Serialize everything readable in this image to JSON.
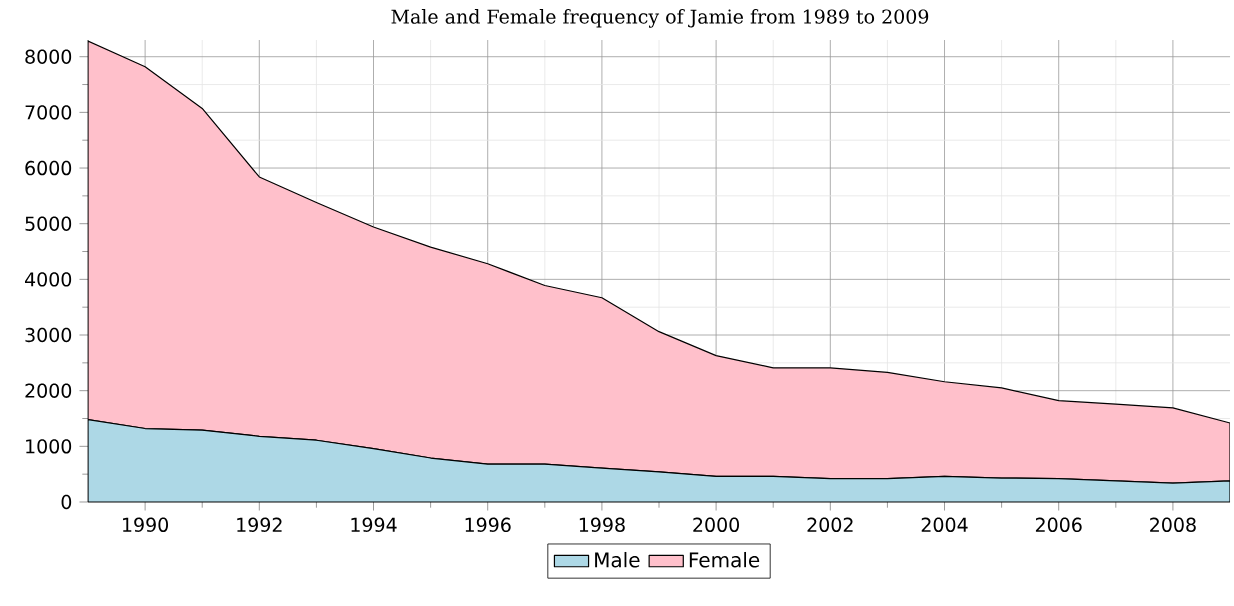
{
  "chart_data": {
    "type": "area",
    "title": "Male and Female frequency of Jamie from 1989 to 2009",
    "stacked": true,
    "x": [
      1989,
      1990,
      1991,
      1992,
      1993,
      1994,
      1995,
      1996,
      1997,
      1998,
      1999,
      2000,
      2001,
      2002,
      2003,
      2004,
      2005,
      2006,
      2007,
      2008,
      2009
    ],
    "series": [
      {
        "name": "Male",
        "color": "#add8e6",
        "values": [
          1480,
          1320,
          1290,
          1180,
          1110,
          960,
          790,
          680,
          680,
          610,
          540,
          460,
          460,
          420,
          420,
          460,
          430,
          420,
          380,
          340,
          380
        ]
      },
      {
        "name": "Female",
        "color": "#ffc0cb",
        "values": [
          6800,
          6500,
          5780,
          4660,
          4270,
          3980,
          3790,
          3600,
          3210,
          3060,
          2520,
          2170,
          1950,
          1990,
          1910,
          1700,
          1620,
          1400,
          1380,
          1350,
          1040
        ]
      }
    ],
    "xlim": [
      1989,
      2009
    ],
    "xticks": [
      1990,
      1992,
      1994,
      1996,
      1998,
      2000,
      2002,
      2004,
      2006,
      2008
    ],
    "ylim": [
      0,
      8300
    ],
    "yticks": [
      0,
      1000,
      2000,
      3000,
      4000,
      5000,
      6000,
      7000,
      8000
    ],
    "grid": true,
    "legend": "bottom"
  }
}
